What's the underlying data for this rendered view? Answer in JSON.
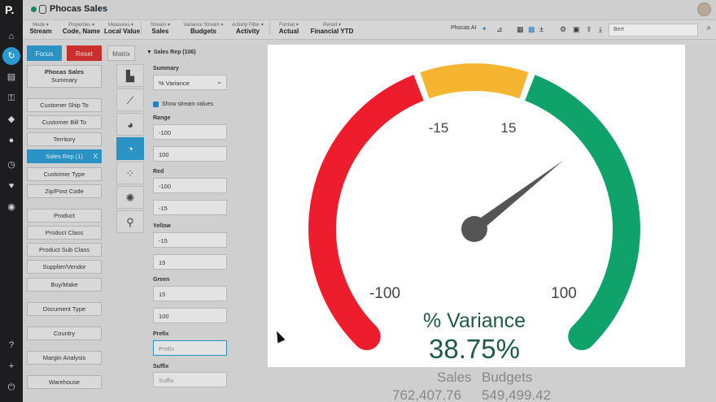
{
  "app": {
    "logo": "P.",
    "title": "Phocas Sales"
  },
  "rail_icons": [
    "home-icon",
    "sync-icon",
    "report-icon",
    "key-icon",
    "tag-icon",
    "user-icon",
    "history-icon",
    "heart-icon",
    "dashboard-icon",
    "help-icon",
    "plus-icon",
    "power-icon"
  ],
  "dimbar": [
    {
      "label": "Mode ▾",
      "value": "Stream"
    },
    {
      "label": "Properties ▾",
      "value": "Code, Name"
    },
    {
      "label": "Measures ▾",
      "value": "Local Value"
    },
    {
      "label": "Stream ▾",
      "value": "Sales"
    },
    {
      "label": "Variance Stream ▾",
      "value": "Budgets"
    },
    {
      "label": "Activity Filter ▾",
      "value": "Activity"
    },
    {
      "label": "Format ▾",
      "value": "Actual"
    },
    {
      "label": "Period ▾",
      "value": "Financial YTD"
    }
  ],
  "toolbar": {
    "phocas_ai": "Phocas AI",
    "search_value": "Bert"
  },
  "buttons": {
    "focus": "Focus",
    "reset": "Reset",
    "matrix": "Matrix"
  },
  "sidebar": {
    "database": "Phocas Sales",
    "database_sub": "Summary",
    "items": [
      "Customer Ship To",
      "Customer Bill To",
      "Territory",
      "Sales Rep (1)",
      "Customer Type",
      "Zip/Post Code",
      "Product",
      "Product Class",
      "Product Sub Class",
      "Supplier/Vendor",
      "Buy/Make",
      "Document Type",
      "Country",
      "Margin Analysis",
      "Warehouse"
    ],
    "active_close": "X"
  },
  "panel": {
    "header": "Sales Rep (106)",
    "summary_label": "Summary",
    "summary_value": "% Variance",
    "show_stream_values": "Show stream values",
    "range_label": "Range",
    "range_min": "-100",
    "range_max": "100",
    "red_label": "Red",
    "red_min": "-100",
    "red_max": "-15",
    "yellow_label": "Yellow",
    "yellow_min": "-15",
    "yellow_max": "15",
    "green_label": "Green",
    "green_min": "15",
    "green_max": "100",
    "prefix_label": "Prefix",
    "prefix_placeholder": "Prefix",
    "suffix_label": "Suffix",
    "suffix_placeholder": "Suffix"
  },
  "gauge": {
    "range": [
      -100,
      100
    ],
    "bands": [
      {
        "name": "red",
        "from": -100,
        "to": -15,
        "color": "#ee1d2d"
      },
      {
        "name": "yellow",
        "from": -15,
        "to": 15,
        "color": "#f6b530"
      },
      {
        "name": "green",
        "from": 15,
        "to": 100,
        "color": "#0fa36b"
      }
    ],
    "value": 38.75,
    "tick_labels": {
      "min": "-100",
      "low": "-15",
      "high": "15",
      "max": "100"
    },
    "title": "% Variance",
    "value_text": "38.75%",
    "needle_color": "#555555",
    "text_color": "#1e5a45"
  },
  "below_card": {
    "sales_label": "Sales",
    "budgets_label": "Budgets",
    "sales_value": "762,407.76",
    "budgets_value": "549,499.42"
  }
}
